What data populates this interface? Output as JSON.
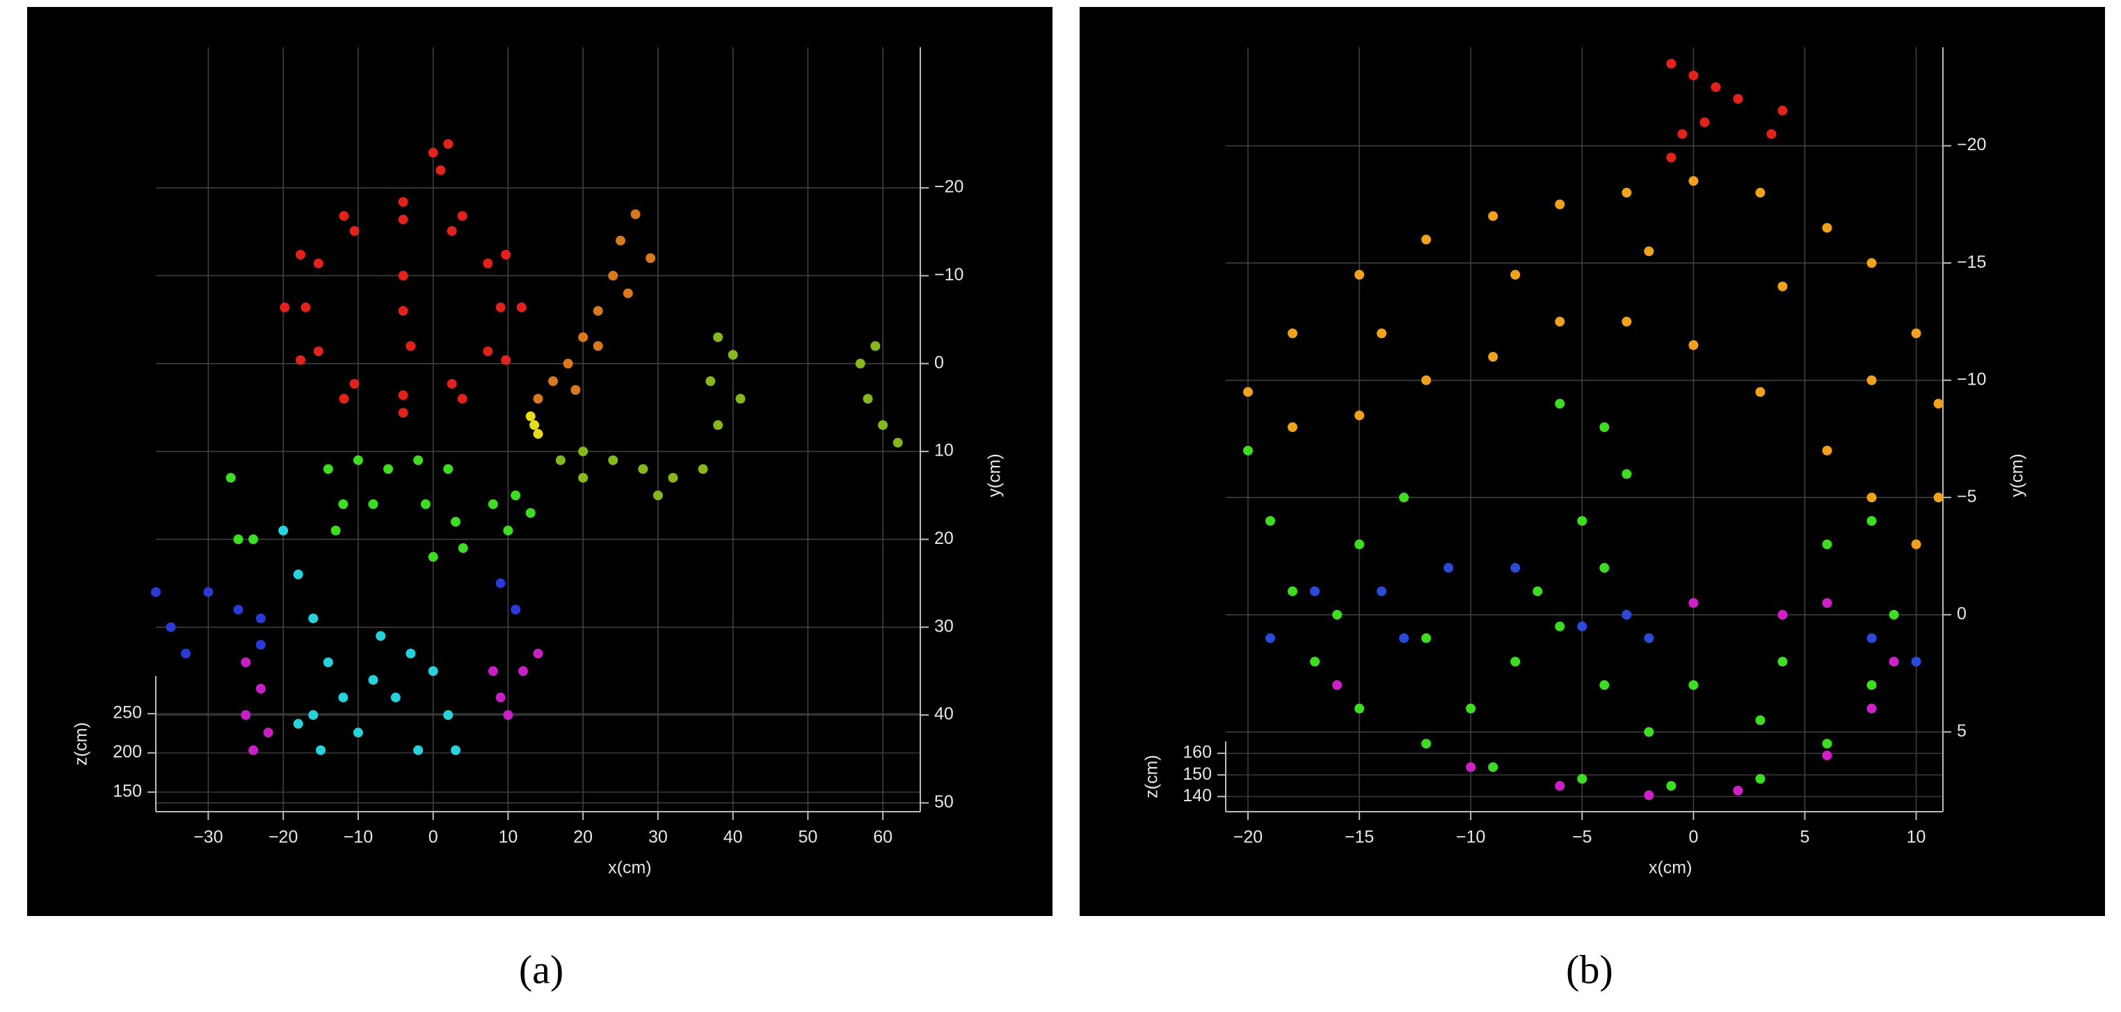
{
  "chart_data": [
    {
      "type": "scatter",
      "label": "(a)",
      "xlabel": "x(cm)",
      "ylabel": "y(cm)",
      "zlabel": "z(cm)",
      "xlim": [
        -37,
        65
      ],
      "ylim": [
        -36,
        51
      ],
      "y_inverted": true,
      "zlim": [
        125,
        298
      ],
      "grid": true,
      "xticks": [
        {
          "value": -30,
          "label": "−30"
        },
        {
          "value": -20,
          "label": "−20"
        },
        {
          "value": -10,
          "label": "−10"
        },
        0,
        10,
        20,
        30,
        40,
        50,
        60
      ],
      "yticks": [
        {
          "value": -20,
          "label": "−20"
        },
        {
          "value": -10,
          "label": "−10"
        },
        0,
        10,
        20,
        30,
        40,
        50
      ],
      "zticks": [
        150,
        200,
        250
      ],
      "series": [
        {
          "color": "#e3231b",
          "x": [
            11.8,
            9.7,
            3.9,
            -4,
            -11.9,
            -17.7,
            -19.8,
            -17.7,
            -11.9,
            -4,
            3.9,
            9.7,
            9,
            7.3,
            2.5,
            -4,
            -10.5,
            -15.3,
            -17,
            -15.3,
            -10.5,
            -4,
            2.5,
            7.3,
            -4,
            -4,
            -3,
            0,
            1,
            2
          ],
          "y": [
            -6.4,
            -0.4,
            4.0,
            5.6,
            4.0,
            -0.4,
            -6.4,
            -12.4,
            -16.8,
            -18.4,
            -16.8,
            -12.4,
            -6.4,
            -1.4,
            2.3,
            3.6,
            2.3,
            -1.4,
            -6.4,
            -11.4,
            -15.1,
            -16.4,
            -15.1,
            -11.4,
            -10,
            -6,
            -2,
            -24,
            -22,
            -25
          ]
        },
        {
          "color": "#d9781c",
          "x": [
            14,
            16,
            18,
            20,
            22,
            24,
            25,
            27,
            29,
            26,
            19,
            22
          ],
          "y": [
            4,
            2,
            0,
            -3,
            -6,
            -10,
            -14,
            -17,
            -12,
            -8,
            3,
            -2
          ]
        },
        {
          "color": "#e6dc1a",
          "x": [
            13,
            14,
            13.5
          ],
          "y": [
            6,
            8,
            7
          ]
        },
        {
          "color": "#86b81e",
          "x": [
            17,
            20,
            24,
            28,
            32,
            36,
            38,
            37,
            40,
            38,
            41,
            30,
            20,
            57,
            58,
            60,
            62,
            59
          ],
          "y": [
            11,
            10,
            11,
            12,
            13,
            12,
            7,
            2,
            -1,
            -3,
            4,
            15,
            13,
            0,
            4,
            7,
            9,
            -2
          ]
        },
        {
          "color": "#3edc22",
          "x": [
            -14,
            -10,
            -6,
            -2,
            2,
            -12,
            -8,
            -1,
            3,
            4,
            0,
            -13,
            8,
            11,
            13,
            10,
            -27,
            -26,
            -24
          ],
          "y": [
            12,
            11,
            12,
            11,
            12,
            16,
            16,
            16,
            18,
            21,
            22,
            19,
            16,
            15,
            17,
            19,
            13,
            20,
            20
          ]
        },
        {
          "color": "#28d2dc",
          "x": [
            -20,
            -18,
            -16,
            -14,
            -12,
            -16,
            -18,
            -10,
            -5,
            -3,
            0,
            2,
            3,
            -2,
            -8,
            -15,
            -7
          ],
          "y": [
            19,
            24,
            29,
            34,
            38,
            40,
            41,
            42,
            38,
            33,
            35,
            40,
            44,
            44,
            36,
            44,
            31
          ]
        },
        {
          "color": "#2a3ad6",
          "x": [
            -37,
            -35,
            -33,
            -30,
            -26,
            -23,
            9,
            11,
            -23
          ],
          "y": [
            26,
            30,
            33,
            26,
            28,
            29,
            25,
            28,
            32
          ]
        },
        {
          "color": "#c820c4",
          "x": [
            -25,
            -23,
            -25,
            -22,
            -24,
            8,
            9,
            10,
            12,
            14
          ],
          "y": [
            34,
            37,
            40,
            42,
            44,
            35,
            38,
            40,
            35,
            33
          ]
        }
      ]
    },
    {
      "type": "scatter",
      "label": "(b)",
      "xlabel": "x(cm)",
      "ylabel": "y(cm)",
      "zlabel": "z(cm)",
      "xlim": [
        -21,
        11.2
      ],
      "ylim": [
        -24.2,
        8.4
      ],
      "y_inverted": true,
      "zlim": [
        133,
        165.5
      ],
      "grid": true,
      "xticks": [
        {
          "value": -20,
          "label": "−20"
        },
        {
          "value": -15,
          "label": "−15"
        },
        {
          "value": -10,
          "label": "−10"
        },
        {
          "value": -5,
          "label": "−5"
        },
        0,
        5,
        10
      ],
      "yticks": [
        {
          "value": -20,
          "label": "−20"
        },
        {
          "value": -15,
          "label": "−15"
        },
        {
          "value": -10,
          "label": "−10"
        },
        {
          "value": -5,
          "label": "−5"
        },
        0,
        5
      ],
      "zticks": [
        140,
        150,
        160
      ],
      "series": [
        {
          "color": "#e3231b",
          "x": [
            -1,
            0,
            1,
            2,
            0.5,
            -0.5,
            -1,
            3.5,
            4
          ],
          "y": [
            -23.5,
            -23,
            -22.5,
            -22,
            -21,
            -20.5,
            -19.5,
            -20.5,
            -21.5
          ]
        },
        {
          "color": "#eea21e",
          "x": [
            -20,
            -18,
            -15,
            -12,
            -9,
            -6,
            -3,
            0,
            3,
            6,
            8,
            10,
            11,
            11,
            10,
            8,
            6,
            3,
            0,
            -3,
            -6,
            -9,
            -12,
            -15,
            -18,
            -14,
            -8,
            -2,
            4,
            8
          ],
          "y": [
            -9.5,
            -12,
            -14.5,
            -16,
            -17,
            -17.5,
            -18,
            -18.5,
            -18,
            -16.5,
            -15,
            -12,
            -9,
            -5,
            -3,
            -5,
            -7,
            -9.5,
            -11.5,
            -12.5,
            -12.5,
            -11,
            -10,
            -8.5,
            -8,
            -12,
            -14.5,
            -15.5,
            -14,
            -10
          ]
        },
        {
          "color": "#3edc22",
          "x": [
            -20,
            -19,
            -18,
            -17,
            -15,
            -12,
            -9,
            -5,
            -1,
            3,
            6,
            8,
            9,
            8,
            6,
            -12,
            -8,
            -4,
            0,
            4,
            -10,
            -2,
            3,
            -15,
            -13,
            -6,
            -4,
            -3,
            -5,
            -4,
            -7,
            -16,
            -6
          ],
          "y": [
            -7,
            -4,
            -1,
            2,
            4,
            5.5,
            6.5,
            7,
            7.3,
            7,
            5.5,
            3,
            0,
            -4,
            -3,
            1,
            2,
            3,
            3,
            2,
            4,
            5,
            4.5,
            -3,
            -5,
            -9,
            -8,
            -6,
            -4,
            -2,
            -1,
            0,
            0.5
          ]
        },
        {
          "color": "#2a4ad8",
          "x": [
            -19,
            -17,
            -14,
            -11,
            -8,
            -5,
            -3,
            -2,
            8,
            10,
            -13
          ],
          "y": [
            1,
            -1,
            -1,
            -2,
            -2,
            0.5,
            0,
            1,
            1,
            2,
            1
          ]
        },
        {
          "color": "#d020c8",
          "x": [
            -16,
            -10,
            -6,
            -2,
            2,
            6,
            8,
            9,
            4,
            0,
            6
          ],
          "y": [
            3,
            6.5,
            7.3,
            7.7,
            7.5,
            6,
            4,
            2,
            0,
            -0.5,
            -0.5
          ]
        }
      ]
    }
  ]
}
